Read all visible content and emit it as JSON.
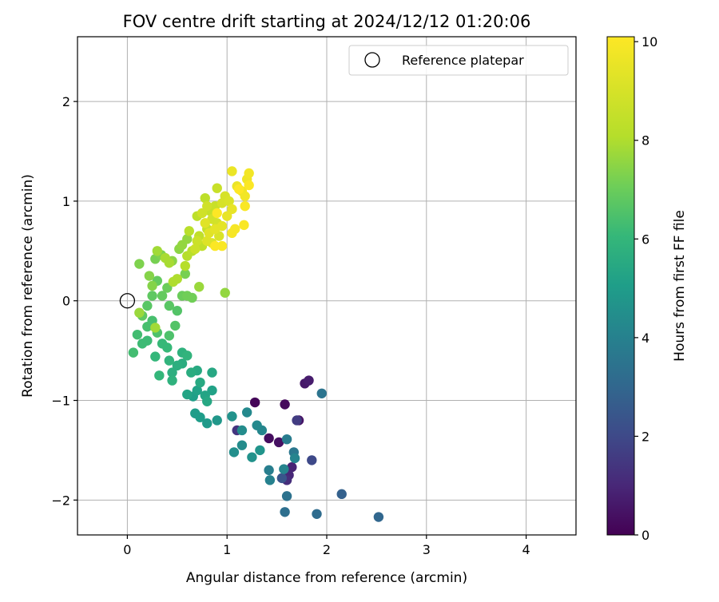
{
  "chart_data": {
    "type": "scatter",
    "title": "FOV centre drift starting at 2024/12/12 01:20:06",
    "xlabel": "Angular distance from reference (arcmin)",
    "ylabel": "Rotation from reference (arcmin)",
    "xlim": [
      -0.5,
      4.5
    ],
    "ylim": [
      -2.35,
      2.65
    ],
    "xticks": [
      0,
      1,
      2,
      3,
      4
    ],
    "xtick_labels": [
      "0",
      "1",
      "2",
      "3",
      "4"
    ],
    "yticks": [
      -2,
      -1,
      0,
      1,
      2
    ],
    "ytick_labels": [
      "−2",
      "−1",
      "0",
      "1",
      "2"
    ],
    "grid": true,
    "legend": {
      "placement": "top-right",
      "entries": [
        "Reference platepar"
      ]
    },
    "reference_marker": {
      "label": "Reference platepar",
      "x": 0,
      "y": 0,
      "marker": "open-circle"
    },
    "colorbar": {
      "label": "Hours from first FF file",
      "range": [
        0,
        10.1
      ],
      "ticks": [
        0,
        2,
        4,
        6,
        8,
        10
      ],
      "tick_labels": [
        "0",
        "2",
        "4",
        "6",
        "8",
        "10"
      ],
      "colormap": "viridis"
    },
    "points": [
      {
        "x": 1.28,
        "y": -1.02,
        "h": 0.1
      },
      {
        "x": 1.58,
        "y": -1.04,
        "h": 0.2
      },
      {
        "x": 1.42,
        "y": -1.38,
        "h": 0.3
      },
      {
        "x": 1.52,
        "y": -1.42,
        "h": 0.4
      },
      {
        "x": 1.72,
        "y": -1.2,
        "h": 0.5
      },
      {
        "x": 1.78,
        "y": -0.83,
        "h": 0.6
      },
      {
        "x": 1.82,
        "y": -0.8,
        "h": 0.7
      },
      {
        "x": 1.65,
        "y": -1.67,
        "h": 0.9
      },
      {
        "x": 1.62,
        "y": -1.75,
        "h": 1.0
      },
      {
        "x": 1.6,
        "y": -1.8,
        "h": 1.2
      },
      {
        "x": 1.1,
        "y": -1.3,
        "h": 1.4
      },
      {
        "x": 1.7,
        "y": -1.2,
        "h": 1.6
      },
      {
        "x": 1.85,
        "y": -1.6,
        "h": 2.0
      },
      {
        "x": 1.55,
        "y": -1.78,
        "h": 2.4
      },
      {
        "x": 2.15,
        "y": -1.94,
        "h": 2.8
      },
      {
        "x": 2.52,
        "y": -2.17,
        "h": 3.0
      },
      {
        "x": 1.9,
        "y": -2.14,
        "h": 3.2
      },
      {
        "x": 1.58,
        "y": -2.12,
        "h": 3.3
      },
      {
        "x": 1.6,
        "y": -1.96,
        "h": 3.4
      },
      {
        "x": 1.95,
        "y": -0.93,
        "h": 3.5
      },
      {
        "x": 1.67,
        "y": -1.52,
        "h": 3.6
      },
      {
        "x": 1.6,
        "y": -1.39,
        "h": 3.8
      },
      {
        "x": 1.42,
        "y": -1.7,
        "h": 3.9
      },
      {
        "x": 1.43,
        "y": -1.8,
        "h": 4.0
      },
      {
        "x": 1.57,
        "y": -1.69,
        "h": 4.1
      },
      {
        "x": 1.68,
        "y": -1.58,
        "h": 4.1
      },
      {
        "x": 1.35,
        "y": -1.3,
        "h": 4.2
      },
      {
        "x": 1.3,
        "y": -1.25,
        "h": 4.3
      },
      {
        "x": 1.2,
        "y": -1.12,
        "h": 4.3
      },
      {
        "x": 1.15,
        "y": -1.3,
        "h": 4.4
      },
      {
        "x": 1.15,
        "y": -1.45,
        "h": 4.4
      },
      {
        "x": 1.07,
        "y": -1.52,
        "h": 4.5
      },
      {
        "x": 1.05,
        "y": -1.16,
        "h": 4.6
      },
      {
        "x": 1.25,
        "y": -1.57,
        "h": 4.6
      },
      {
        "x": 1.33,
        "y": -1.5,
        "h": 4.7
      },
      {
        "x": 0.9,
        "y": -1.2,
        "h": 4.8
      },
      {
        "x": 0.8,
        "y": -1.23,
        "h": 4.9
      },
      {
        "x": 0.73,
        "y": -1.17,
        "h": 5.0
      },
      {
        "x": 0.68,
        "y": -1.13,
        "h": 5.0
      },
      {
        "x": 0.66,
        "y": -0.96,
        "h": 5.1
      },
      {
        "x": 0.7,
        "y": -0.9,
        "h": 5.2
      },
      {
        "x": 0.85,
        "y": -0.9,
        "h": 5.2
      },
      {
        "x": 0.78,
        "y": -0.95,
        "h": 5.3
      },
      {
        "x": 0.6,
        "y": -0.94,
        "h": 5.3
      },
      {
        "x": 0.8,
        "y": -1.01,
        "h": 5.4
      },
      {
        "x": 0.85,
        "y": -0.72,
        "h": 5.4
      },
      {
        "x": 0.73,
        "y": -0.82,
        "h": 5.5
      },
      {
        "x": 0.7,
        "y": -0.7,
        "h": 5.5
      },
      {
        "x": 0.64,
        "y": -0.72,
        "h": 5.6
      },
      {
        "x": 0.55,
        "y": -0.63,
        "h": 5.6
      },
      {
        "x": 0.5,
        "y": -0.65,
        "h": 5.7
      },
      {
        "x": 0.45,
        "y": -0.72,
        "h": 5.7
      },
      {
        "x": 0.45,
        "y": -0.8,
        "h": 5.8
      },
      {
        "x": 0.55,
        "y": -0.52,
        "h": 5.8
      },
      {
        "x": 0.6,
        "y": -0.55,
        "h": 5.9
      },
      {
        "x": 0.42,
        "y": -0.6,
        "h": 5.9
      },
      {
        "x": 0.32,
        "y": -0.75,
        "h": 6.0
      },
      {
        "x": 0.28,
        "y": -0.56,
        "h": 6.0
      },
      {
        "x": 0.35,
        "y": -0.43,
        "h": 6.1
      },
      {
        "x": 0.4,
        "y": -0.47,
        "h": 6.1
      },
      {
        "x": 0.2,
        "y": -0.4,
        "h": 6.2
      },
      {
        "x": 0.15,
        "y": -0.43,
        "h": 6.2
      },
      {
        "x": 0.06,
        "y": -0.52,
        "h": 6.3
      },
      {
        "x": 0.1,
        "y": -0.34,
        "h": 6.3
      },
      {
        "x": 0.2,
        "y": -0.26,
        "h": 6.4
      },
      {
        "x": 0.25,
        "y": -0.2,
        "h": 6.4
      },
      {
        "x": 0.3,
        "y": -0.32,
        "h": 6.5
      },
      {
        "x": 0.42,
        "y": -0.35,
        "h": 6.5
      },
      {
        "x": 0.48,
        "y": -0.25,
        "h": 6.6
      },
      {
        "x": 0.5,
        "y": -0.1,
        "h": 6.6
      },
      {
        "x": 0.42,
        "y": -0.05,
        "h": 6.7
      },
      {
        "x": 0.2,
        "y": -0.05,
        "h": 6.7
      },
      {
        "x": 0.15,
        "y": -0.15,
        "h": 6.8
      },
      {
        "x": 0.25,
        "y": 0.05,
        "h": 6.8
      },
      {
        "x": 0.35,
        "y": 0.05,
        "h": 6.9
      },
      {
        "x": 0.3,
        "y": 0.2,
        "h": 6.9
      },
      {
        "x": 0.4,
        "y": 0.13,
        "h": 7.0
      },
      {
        "x": 0.55,
        "y": 0.05,
        "h": 7.0
      },
      {
        "x": 0.6,
        "y": 0.05,
        "h": 7.1
      },
      {
        "x": 0.65,
        "y": 0.03,
        "h": 7.1
      },
      {
        "x": 0.58,
        "y": 0.27,
        "h": 7.2
      },
      {
        "x": 0.28,
        "y": 0.42,
        "h": 7.2
      },
      {
        "x": 0.34,
        "y": 0.46,
        "h": 7.3
      },
      {
        "x": 0.12,
        "y": 0.37,
        "h": 7.3
      },
      {
        "x": 0.22,
        "y": 0.25,
        "h": 7.4
      },
      {
        "x": 0.25,
        "y": 0.15,
        "h": 7.4
      },
      {
        "x": 0.45,
        "y": 0.4,
        "h": 7.5
      },
      {
        "x": 0.52,
        "y": 0.52,
        "h": 7.5
      },
      {
        "x": 0.55,
        "y": 0.56,
        "h": 7.6
      },
      {
        "x": 0.6,
        "y": 0.62,
        "h": 7.6
      },
      {
        "x": 0.98,
        "y": 0.08,
        "h": 7.6
      },
      {
        "x": 0.72,
        "y": 0.14,
        "h": 7.7
      },
      {
        "x": 0.12,
        "y": -0.12,
        "h": 7.7
      },
      {
        "x": 0.28,
        "y": -0.27,
        "h": 7.8
      },
      {
        "x": 0.3,
        "y": 0.5,
        "h": 7.8
      },
      {
        "x": 0.38,
        "y": 0.43,
        "h": 7.9
      },
      {
        "x": 0.42,
        "y": 0.38,
        "h": 7.9
      },
      {
        "x": 0.5,
        "y": 0.22,
        "h": 8.0
      },
      {
        "x": 0.46,
        "y": 0.19,
        "h": 8.0
      },
      {
        "x": 0.58,
        "y": 0.35,
        "h": 8.1
      },
      {
        "x": 0.6,
        "y": 0.45,
        "h": 8.1
      },
      {
        "x": 0.65,
        "y": 0.5,
        "h": 8.2
      },
      {
        "x": 0.62,
        "y": 0.7,
        "h": 8.2
      },
      {
        "x": 0.7,
        "y": 0.85,
        "h": 8.3
      },
      {
        "x": 0.78,
        "y": 1.03,
        "h": 8.3
      },
      {
        "x": 0.72,
        "y": 0.65,
        "h": 8.4
      },
      {
        "x": 0.75,
        "y": 0.55,
        "h": 8.4
      },
      {
        "x": 0.8,
        "y": 0.72,
        "h": 8.5
      },
      {
        "x": 0.83,
        "y": 0.9,
        "h": 8.5
      },
      {
        "x": 0.9,
        "y": 1.13,
        "h": 8.6
      },
      {
        "x": 0.88,
        "y": 0.95,
        "h": 8.6
      },
      {
        "x": 0.7,
        "y": 0.6,
        "h": 8.7
      },
      {
        "x": 0.68,
        "y": 0.52,
        "h": 8.7
      },
      {
        "x": 0.75,
        "y": 0.88,
        "h": 8.8
      },
      {
        "x": 0.8,
        "y": 0.95,
        "h": 8.8
      },
      {
        "x": 0.85,
        "y": 0.82,
        "h": 8.9
      },
      {
        "x": 0.9,
        "y": 0.78,
        "h": 8.9
      },
      {
        "x": 0.95,
        "y": 0.98,
        "h": 9.0
      },
      {
        "x": 0.98,
        "y": 1.05,
        "h": 9.0
      },
      {
        "x": 1.02,
        "y": 1.0,
        "h": 9.1
      },
      {
        "x": 0.92,
        "y": 0.65,
        "h": 9.1
      },
      {
        "x": 0.85,
        "y": 0.58,
        "h": 9.2
      },
      {
        "x": 0.8,
        "y": 0.6,
        "h": 9.2
      },
      {
        "x": 0.78,
        "y": 0.78,
        "h": 9.3
      },
      {
        "x": 0.82,
        "y": 0.68,
        "h": 9.3
      },
      {
        "x": 0.88,
        "y": 0.72,
        "h": 9.4
      },
      {
        "x": 0.95,
        "y": 0.75,
        "h": 9.4
      },
      {
        "x": 1.0,
        "y": 0.85,
        "h": 9.5
      },
      {
        "x": 1.05,
        "y": 0.92,
        "h": 9.5
      },
      {
        "x": 1.05,
        "y": 1.3,
        "h": 9.6
      },
      {
        "x": 1.1,
        "y": 1.15,
        "h": 9.6
      },
      {
        "x": 1.15,
        "y": 1.1,
        "h": 9.7
      },
      {
        "x": 1.2,
        "y": 1.22,
        "h": 9.7
      },
      {
        "x": 1.22,
        "y": 1.28,
        "h": 9.8
      },
      {
        "x": 1.18,
        "y": 1.05,
        "h": 9.8
      },
      {
        "x": 1.08,
        "y": 0.72,
        "h": 9.9
      },
      {
        "x": 1.05,
        "y": 0.68,
        "h": 9.9
      },
      {
        "x": 1.17,
        "y": 0.76,
        "h": 10.0
      },
      {
        "x": 1.18,
        "y": 0.95,
        "h": 10.0
      },
      {
        "x": 0.95,
        "y": 0.55,
        "h": 10.0
      },
      {
        "x": 0.88,
        "y": 0.55,
        "h": 10.05
      },
      {
        "x": 1.22,
        "y": 1.16,
        "h": 10.05
      },
      {
        "x": 1.12,
        "y": 1.12,
        "h": 10.1
      },
      {
        "x": 0.9,
        "y": 0.88,
        "h": 10.1
      }
    ]
  }
}
